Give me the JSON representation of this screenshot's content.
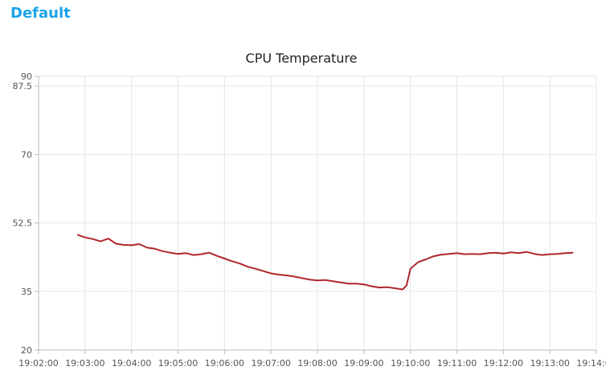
{
  "group": {
    "title": "Default"
  },
  "chart_data": {
    "type": "line",
    "title": "CPU Temperature",
    "xlabel": "",
    "ylabel": "",
    "x_ticks": [
      "19:02:00",
      "19:03:00",
      "19:04:00",
      "19:05:00",
      "19:06:00",
      "19:07:00",
      "19:08:00",
      "19:09:00",
      "19:10:00",
      "19:11:00",
      "19:12:00",
      "19:13:00",
      "19:14:00"
    ],
    "y_ticks": [
      20,
      35,
      52.5,
      70,
      87.5,
      90
    ],
    "xlim": [
      "19:02:00",
      "19:14:00"
    ],
    "ylim": [
      20,
      90
    ],
    "grid": true,
    "legend": "none",
    "series_color": "#b0272d",
    "series": [
      {
        "x": [
          "19:02:50",
          "19:03:00",
          "19:03:10",
          "19:03:20",
          "19:03:30",
          "19:03:40",
          "19:03:50",
          "19:04:00",
          "19:04:10",
          "19:04:20",
          "19:04:30",
          "19:04:40",
          "19:04:50",
          "19:05:00",
          "19:05:10",
          "19:05:20",
          "19:05:30",
          "19:05:40",
          "19:05:50",
          "19:06:00",
          "19:06:10",
          "19:06:20",
          "19:06:30",
          "19:06:40",
          "19:06:50",
          "19:07:00",
          "19:07:10",
          "19:07:20",
          "19:07:30",
          "19:07:40",
          "19:07:50",
          "19:08:00",
          "19:08:10",
          "19:08:20",
          "19:08:30",
          "19:08:40",
          "19:08:50",
          "19:09:00",
          "19:09:10",
          "19:09:20",
          "19:09:30",
          "19:09:40",
          "19:09:50",
          "19:09:55",
          "19:10:00",
          "19:10:10",
          "19:10:20",
          "19:10:30",
          "19:10:40",
          "19:10:50",
          "19:11:00",
          "19:11:10",
          "19:11:20",
          "19:11:30",
          "19:11:40",
          "19:11:50",
          "19:12:00",
          "19:12:10",
          "19:12:20",
          "19:12:30",
          "19:12:40",
          "19:12:50",
          "19:13:00",
          "19:13:10",
          "19:13:20",
          "19:13:30"
        ],
        "values": [
          49.5,
          48.8,
          48.4,
          47.8,
          48.5,
          47.2,
          46.9,
          46.8,
          47.1,
          46.2,
          45.9,
          45.3,
          44.9,
          44.6,
          44.8,
          44.3,
          44.5,
          44.9,
          44.1,
          43.4,
          42.7,
          42.1,
          41.3,
          40.8,
          40.2,
          39.6,
          39.3,
          39.1,
          38.8,
          38.4,
          38.0,
          37.8,
          37.9,
          37.6,
          37.3,
          37.0,
          37.0,
          36.8,
          36.3,
          36.0,
          36.1,
          35.8,
          35.5,
          36.5,
          40.8,
          42.5,
          43.2,
          44.0,
          44.4,
          44.6,
          44.8,
          44.5,
          44.6,
          44.5,
          44.8,
          44.9,
          44.7,
          45.0,
          44.8,
          45.1,
          44.6,
          44.3,
          44.5,
          44.6,
          44.8,
          44.9
        ]
      }
    ]
  }
}
